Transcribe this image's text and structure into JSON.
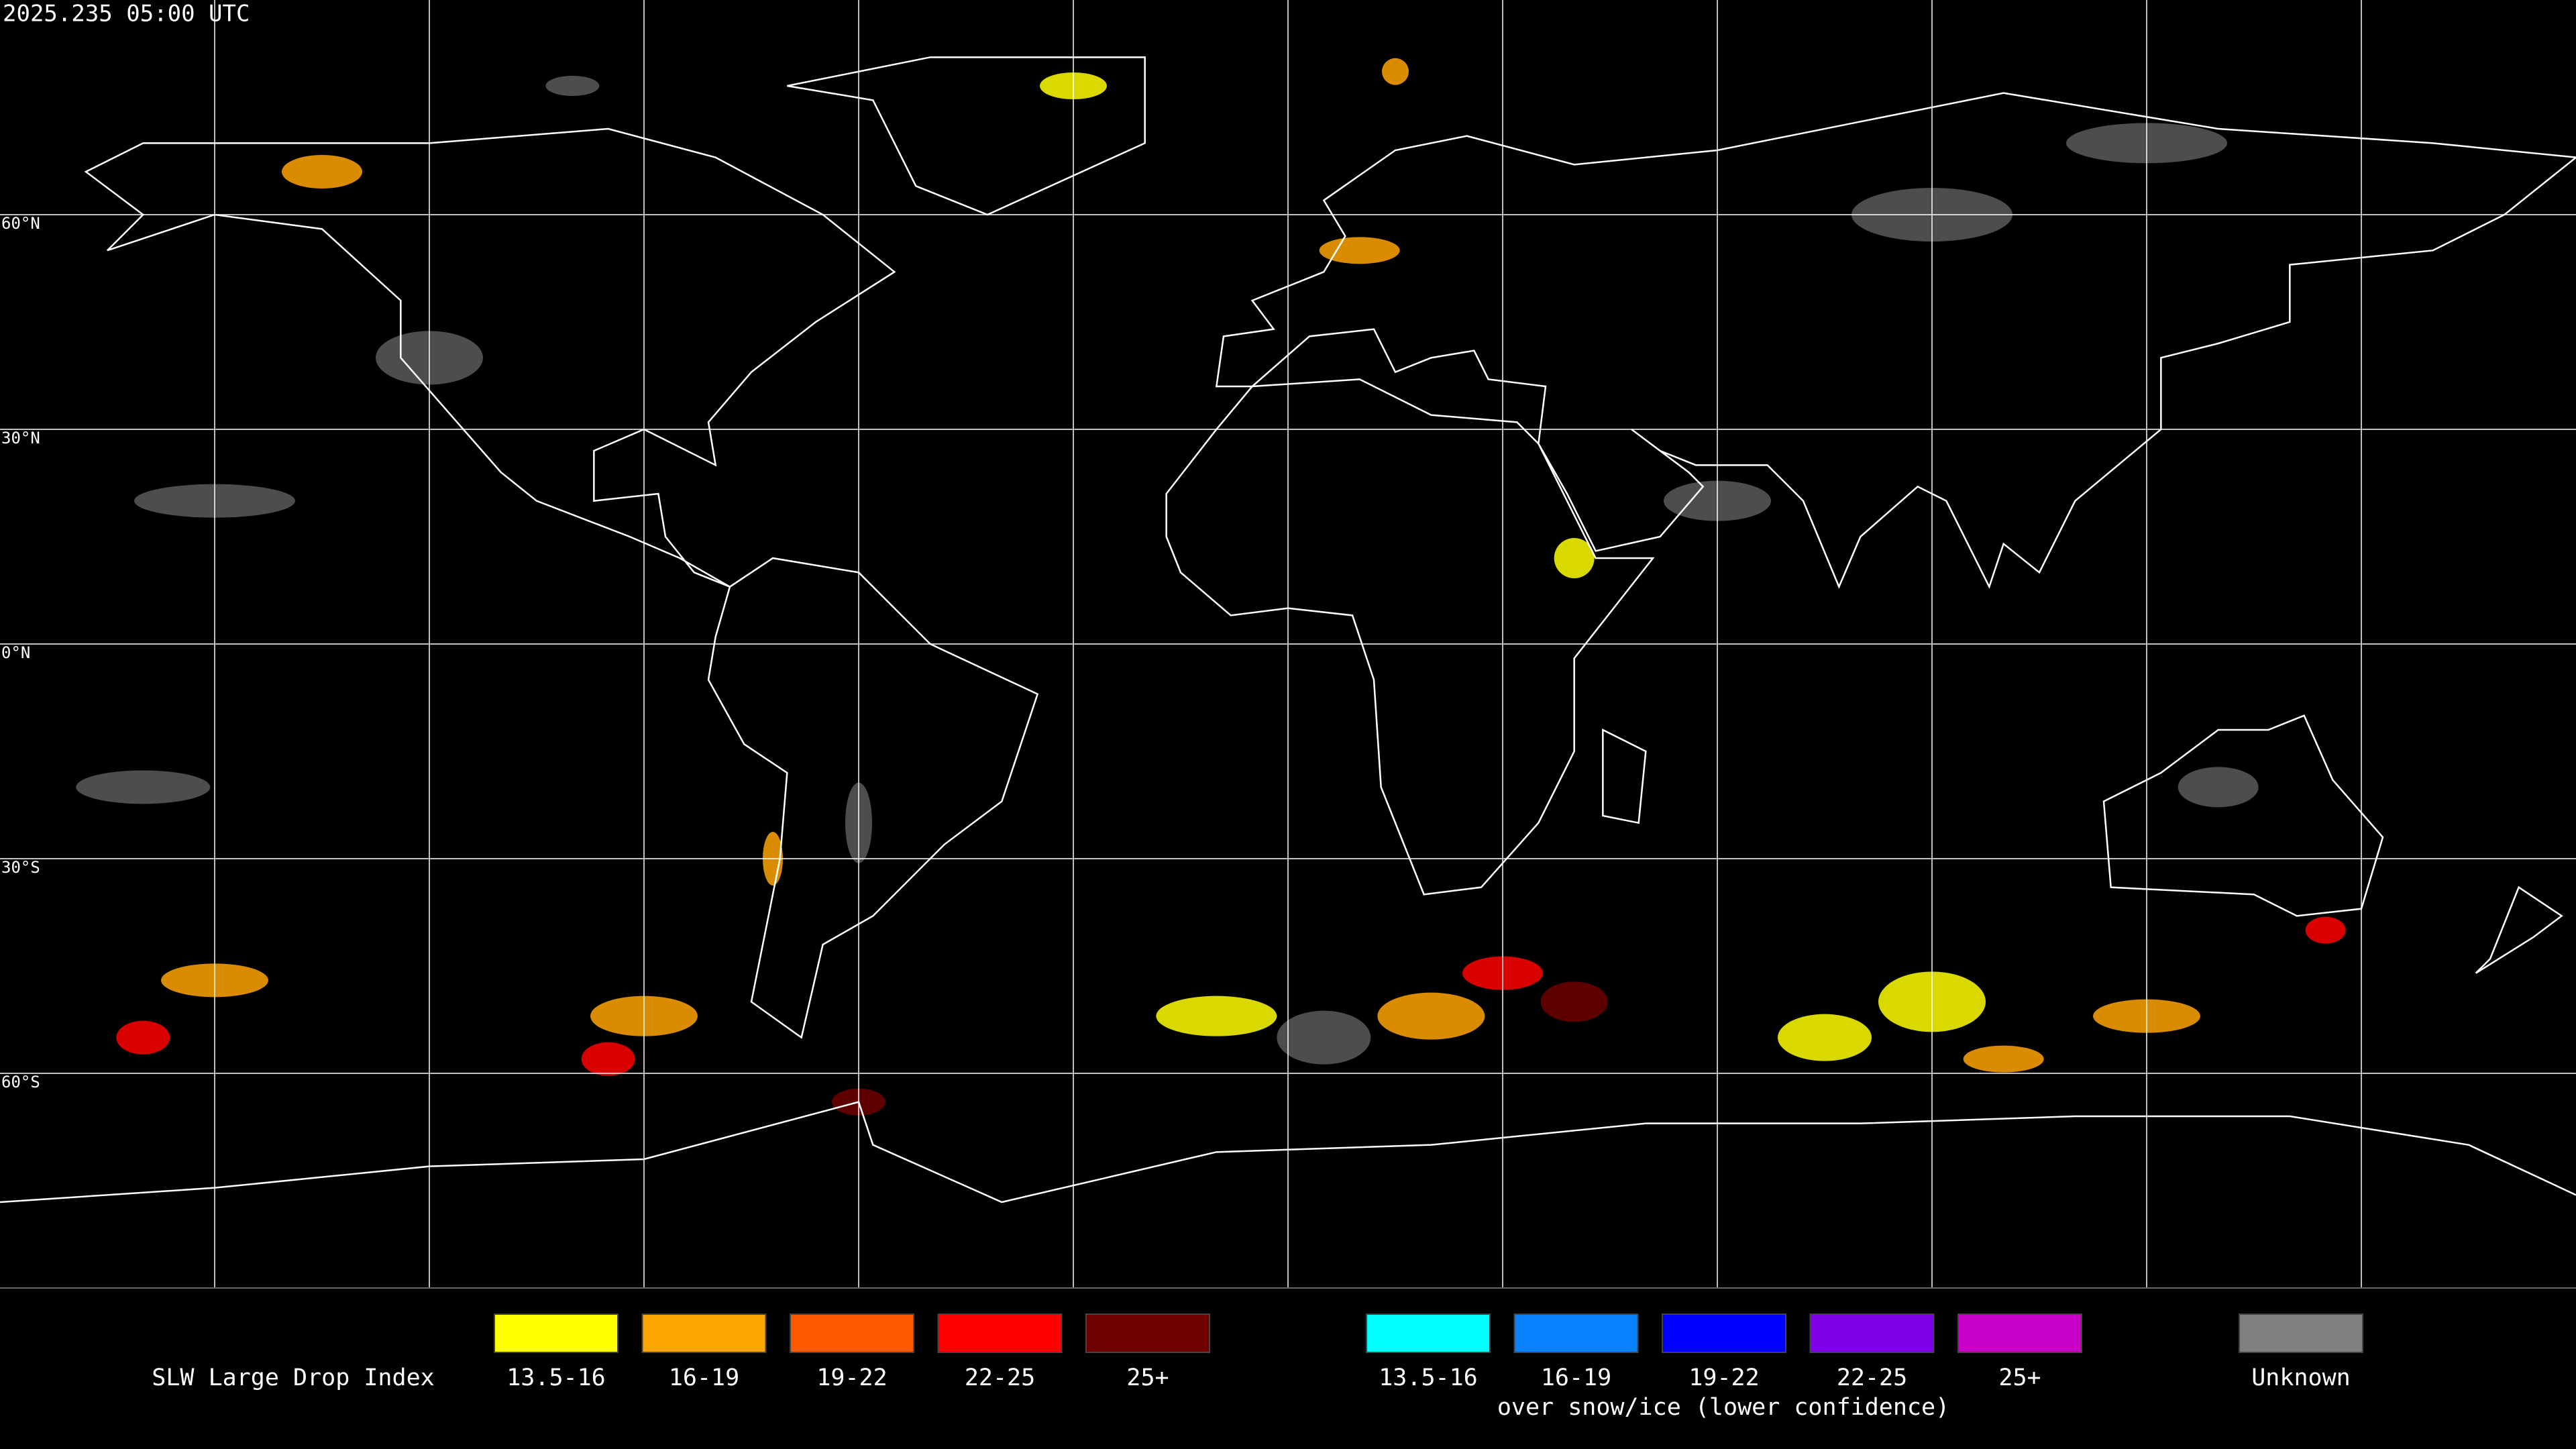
{
  "header": {
    "timestamp": "2025.235 05:00 UTC"
  },
  "map": {
    "latitude_labels": [
      "60°N",
      "30°N",
      "0°N",
      "30°S",
      "60°S"
    ]
  },
  "legend": {
    "title": "SLW Large Drop Index",
    "groups": [
      {
        "items": [
          {
            "label": "13.5-16",
            "color": "#ffff00"
          },
          {
            "label": "16-19",
            "color": "#ffa500"
          },
          {
            "label": "19-22",
            "color": "#ff5a00"
          },
          {
            "label": "22-25",
            "color": "#ff0000"
          },
          {
            "label": "25+",
            "color": "#6e0000"
          }
        ]
      },
      {
        "note": "over snow/ice (lower confidence)",
        "items": [
          {
            "label": "13.5-16",
            "color": "#00ffff"
          },
          {
            "label": "16-19",
            "color": "#0a82ff"
          },
          {
            "label": "19-22",
            "color": "#0000ff"
          },
          {
            "label": "22-25",
            "color": "#7d00e6"
          },
          {
            "label": "25+",
            "color": "#c800c8"
          }
        ]
      }
    ],
    "unknown": {
      "label": "Unknown",
      "color": "#808080"
    }
  }
}
